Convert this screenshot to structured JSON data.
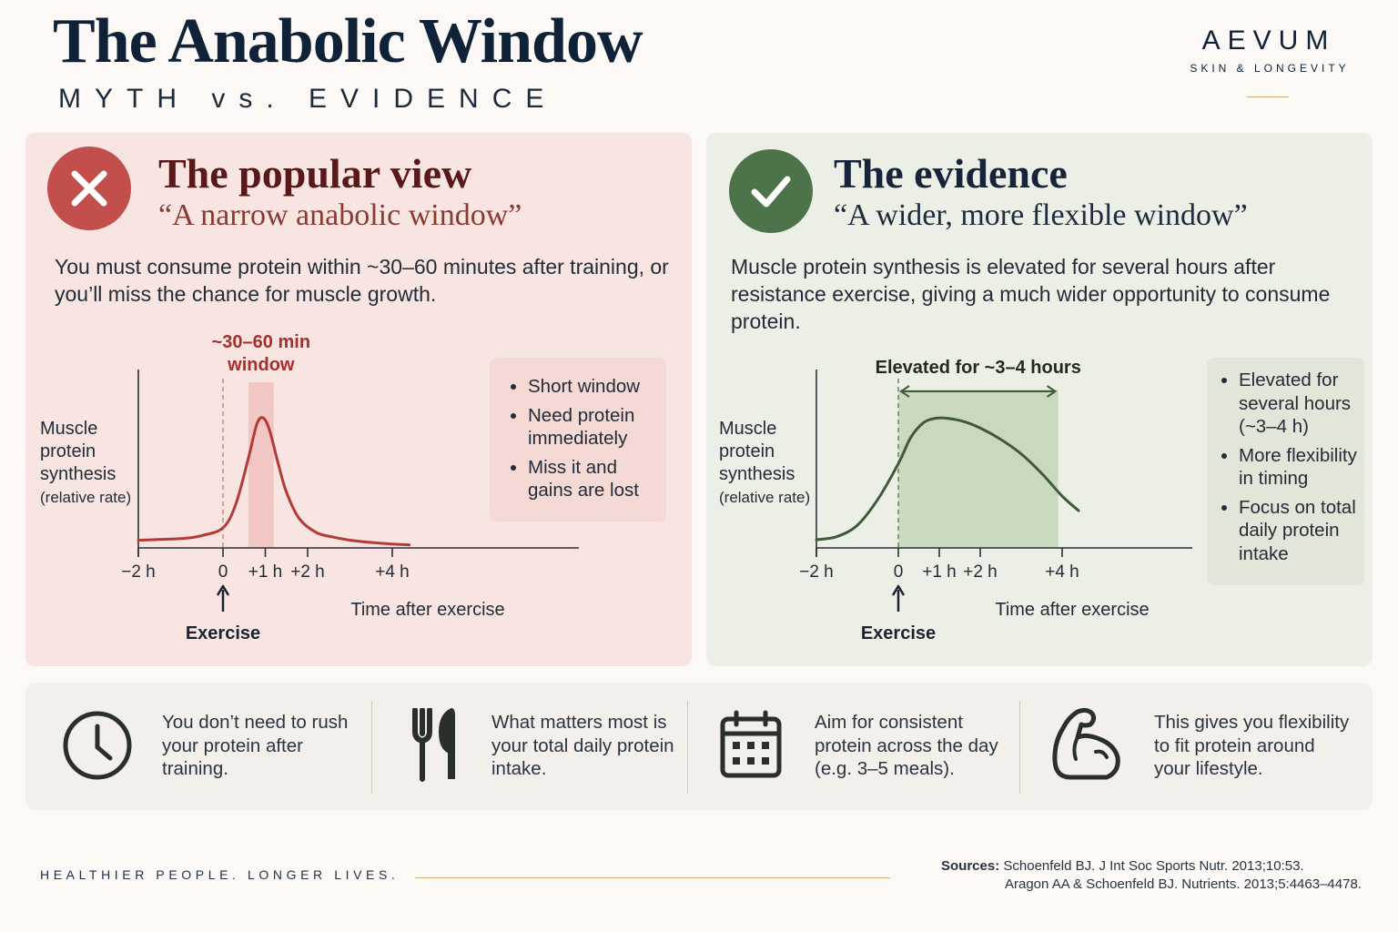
{
  "header": {
    "title": "The Anabolic Window",
    "subtitle": "MYTH vs. EVIDENCE",
    "brand": "AEVUM",
    "brand_tagline": "SKIN & LONGEVITY"
  },
  "myth": {
    "title": "The popular view",
    "quote": "“A narrow anabolic window”",
    "body": "You must consume protein within ~30–60 minutes after training, or you’ll miss the chance for muscle growth.",
    "bullets": [
      "Short window",
      "Need protein immediately",
      "Miss it and gains are lost"
    ],
    "accent_color": "#c24f4b"
  },
  "evidence": {
    "title": "The evidence",
    "quote": "“A wider, more flexible window”",
    "body": "Muscle protein synthesis is elevated for several hours after resistance exercise, giving a much wider opportunity to consume protein.",
    "bullets": [
      "Elevated for several hours (~3–4 h)",
      "More flexibility in timing",
      "Focus on total daily protein intake"
    ],
    "accent_color": "#4c7349"
  },
  "chart_data": [
    {
      "type": "line",
      "ylabel_lines": [
        "Muscle",
        "protein",
        "synthesis"
      ],
      "ylabel_note": "(relative rate)",
      "xlabel": "Time after exercise",
      "x_ticks": [
        -2,
        0,
        1,
        2,
        4
      ],
      "x_tick_labels": [
        "−2 h",
        "0",
        "+1 h",
        "+2 h",
        "+4 h"
      ],
      "xlim": [
        -2,
        4.4
      ],
      "ylim": [
        0,
        1
      ],
      "event_marker": {
        "x": 0,
        "label": "Exercise"
      },
      "highlight": {
        "x_start": 0.6,
        "x_end": 1.2,
        "label_lines": [
          "~30–60 min",
          "window"
        ]
      },
      "series": [
        {
          "color": "#b33a36",
          "x": [
            -2,
            -1,
            -0.5,
            0,
            0.3,
            0.6,
            0.8,
            0.95,
            1.1,
            1.3,
            1.5,
            1.8,
            2.2,
            2.6,
            3,
            3.5,
            4,
            4.4
          ],
          "y": [
            0.05,
            0.06,
            0.08,
            0.13,
            0.28,
            0.58,
            0.8,
            0.84,
            0.76,
            0.55,
            0.36,
            0.19,
            0.1,
            0.07,
            0.05,
            0.035,
            0.025,
            0.02
          ]
        }
      ]
    },
    {
      "type": "line",
      "ylabel_lines": [
        "Muscle",
        "protein",
        "synthesis"
      ],
      "ylabel_note": "(relative rate)",
      "xlabel": "Time after exercise",
      "x_ticks": [
        -2,
        0,
        1,
        2,
        4
      ],
      "x_tick_labels": [
        "−2 h",
        "0",
        "+1 h",
        "+2 h",
        "+4 h"
      ],
      "xlim": [
        -2,
        4.4
      ],
      "ylim": [
        0,
        1
      ],
      "event_marker": {
        "x": 0,
        "label": "Exercise"
      },
      "highlight": {
        "x_start": 0,
        "x_end": 3.9,
        "label_lines": [
          "Elevated for ~3–4 hours"
        ]
      },
      "series": [
        {
          "color": "#3e5a3b",
          "x": [
            -2,
            -1.5,
            -1,
            -0.5,
            0,
            0.3,
            0.6,
            0.9,
            1.2,
            1.6,
            2,
            2.5,
            3,
            3.5,
            4,
            4.4
          ],
          "y": [
            0.05,
            0.07,
            0.14,
            0.3,
            0.52,
            0.68,
            0.77,
            0.8,
            0.8,
            0.78,
            0.74,
            0.67,
            0.58,
            0.46,
            0.32,
            0.23
          ]
        }
      ]
    }
  ],
  "tips": [
    {
      "icon": "clock-icon",
      "text": "You don’t need to rush your protein after training."
    },
    {
      "icon": "fork-knife-icon",
      "text": "What matters most is your total daily protein intake."
    },
    {
      "icon": "calendar-icon",
      "text": "Aim for consistent protein across the day (e.g. 3–5 meals)."
    },
    {
      "icon": "muscle-arm-icon",
      "text": "This gives you flexibility to fit protein around your lifestyle."
    }
  ],
  "footer": {
    "tagline": "HEALTHIER PEOPLE. LONGER LIVES.",
    "sources_label": "Sources:",
    "sources": [
      "Schoenfeld BJ. J Int Soc Sports Nutr. 2013;10:53.",
      "Aragon AA & Schoenfeld BJ. Nutrients. 2013;5:4463–4478."
    ]
  }
}
